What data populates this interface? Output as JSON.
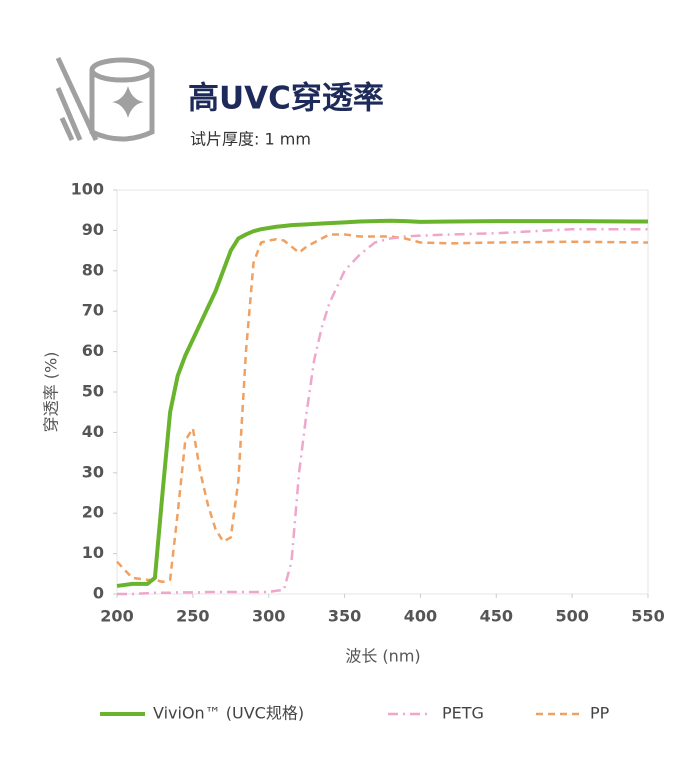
{
  "chart_data": {
    "type": "line",
    "title": "高UVC穿透率",
    "subtitle": "试片厚度: 1 mm",
    "x_label": "波长 (nm)",
    "y_label": "穿透率 (%)",
    "x": [
      200,
      210,
      220,
      225,
      230,
      235,
      240,
      245,
      250,
      255,
      260,
      265,
      270,
      275,
      280,
      285,
      290,
      295,
      300,
      305,
      310,
      315,
      320,
      325,
      330,
      335,
      340,
      350,
      360,
      370,
      380,
      390,
      400,
      420,
      450,
      500,
      550
    ],
    "series": [
      {
        "name": "ViviOn™ (UVC规格)",
        "color": "#6ab42d",
        "dash": "solid",
        "values": [
          2,
          2.5,
          2.5,
          4,
          25,
          45,
          54,
          59,
          63,
          67,
          71,
          75,
          80,
          85,
          88,
          89,
          89.8,
          90.3,
          90.6,
          90.9,
          91.1,
          91.3,
          91.4,
          91.5,
          91.6,
          91.7,
          91.8,
          92,
          92.2,
          92.3,
          92.4,
          92.3,
          92.1,
          92.2,
          92.3,
          92.3,
          92.2
        ]
      },
      {
        "name": "PETG",
        "color": "#f0a6cc",
        "dash": "dashdot",
        "values": [
          0,
          0,
          0.2,
          0.3,
          0.3,
          0.3,
          0.4,
          0.4,
          0.4,
          0.4,
          0.5,
          0.5,
          0.5,
          0.5,
          0.5,
          0.5,
          0.5,
          0.5,
          0.5,
          0.8,
          1,
          8,
          30,
          45,
          58,
          66,
          72,
          80,
          84,
          87,
          88,
          88.5,
          88.7,
          89,
          89.3,
          90.3,
          90.3
        ]
      },
      {
        "name": "PP",
        "color": "#f0a060",
        "dash": "dashed",
        "values": [
          8,
          4,
          3.5,
          3.5,
          3,
          3.5,
          20,
          38,
          41,
          30,
          22,
          16,
          13,
          14,
          28,
          60,
          82,
          87,
          87.5,
          87.8,
          87.5,
          86,
          84.5,
          86,
          87,
          88,
          89,
          89,
          88.5,
          88.5,
          88.5,
          88,
          87,
          86.8,
          87,
          87.2,
          87
        ]
      }
    ],
    "xlim": [
      200,
      550
    ],
    "xticks": [
      200,
      250,
      300,
      350,
      400,
      450,
      500,
      550
    ],
    "ylim": [
      0,
      100
    ],
    "yticks": [
      0,
      10,
      20,
      30,
      40,
      50,
      60,
      70,
      80,
      90,
      100
    ],
    "legend": "bottom"
  }
}
